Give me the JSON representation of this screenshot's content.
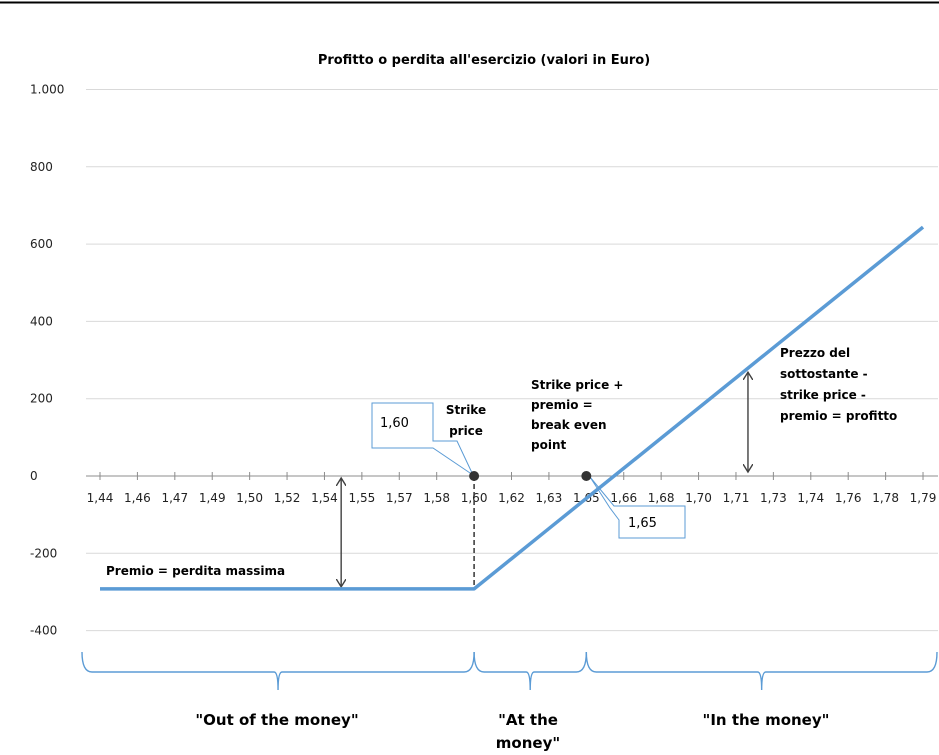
{
  "chart_data": {
    "type": "line",
    "title": "Profitto o perdita all'esercizio (valori in Euro)",
    "xlabel": "",
    "ylabel": "",
    "ylim": [
      -400,
      1000
    ],
    "y_ticks": [
      -400,
      -200,
      0,
      200,
      400,
      600,
      800,
      1000
    ],
    "y_tick_labels": [
      "-400",
      "-200",
      "0",
      "200",
      "400",
      "600",
      "800",
      "1.000"
    ],
    "grid": true,
    "categories": [
      "1,44",
      "1,46",
      "1,47",
      "1,49",
      "1,50",
      "1,52",
      "1,54",
      "1,55",
      "1,57",
      "1,58",
      "1,60",
      "1,62",
      "1,63",
      "1,65",
      "1,66",
      "1,68",
      "1,70",
      "1,71",
      "1,73",
      "1,74",
      "1,76",
      "1,78",
      "1,79"
    ],
    "series": [
      {
        "color": "#5b9bd5",
        "values": [
          -292,
          -292,
          -292,
          -292,
          -292,
          -292,
          -292,
          -292,
          -292,
          -292,
          -292,
          -214,
          -136,
          -58,
          20,
          98,
          176,
          254,
          332,
          410,
          488,
          566,
          644
        ]
      }
    ],
    "points": [
      {
        "category_index": 10,
        "value": 0
      },
      {
        "category_index": 13,
        "value": 0
      }
    ],
    "callouts": [
      "1,60",
      "1,65"
    ],
    "annotations": {
      "strike": [
        "Strike",
        "price"
      ],
      "breakeven": [
        "Strike price +",
        "premio =",
        "break even",
        "point"
      ],
      "profit": [
        "Prezzo del",
        "sottostante -",
        "strike price -",
        "premio = profitto"
      ],
      "premium": "Premio = perdita massima"
    },
    "zones": [
      "\"Out of the money\"",
      "\"At the money\"",
      "\"In the money\""
    ]
  }
}
